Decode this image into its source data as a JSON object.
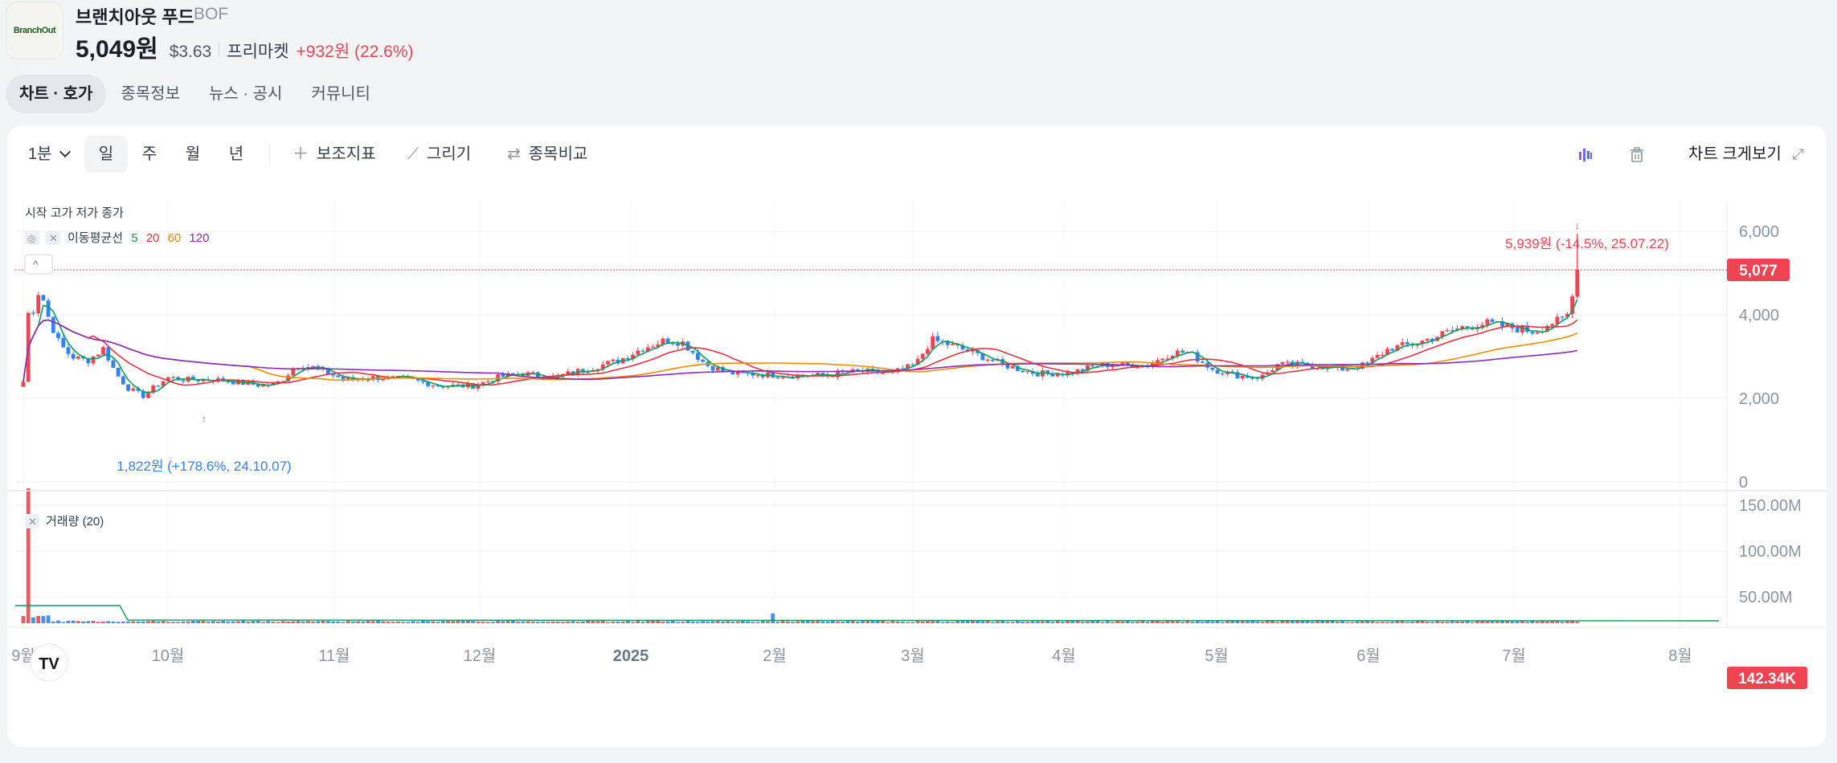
{
  "header": {
    "logo_text": "BranchOut",
    "name": "브랜치아웃 푸드",
    "code": "BOF",
    "price": "5,049원",
    "price_usd": "$3.63",
    "market": "프리마켓",
    "change": "+932원 (22.6%)"
  },
  "tabs": [
    {
      "label": "차트 · 호가",
      "active": true
    },
    {
      "label": "종목정보",
      "active": false
    },
    {
      "label": "뉴스 · 공시",
      "active": false
    },
    {
      "label": "커뮤니티",
      "active": false
    }
  ],
  "toolbar": {
    "interval": "1분",
    "periods": [
      {
        "label": "일",
        "active": true
      },
      {
        "label": "주",
        "active": false
      },
      {
        "label": "월",
        "active": false
      },
      {
        "label": "년",
        "active": false
      }
    ],
    "indicator_label": "보조지표",
    "draw_label": "그리기",
    "compare_label": "종목비교",
    "expand_label": "차트 크게보기"
  },
  "chart_data": {
    "type": "candlestick",
    "ohlc_label": "시작 고가 저가 종가",
    "ma_label": "이동평균선",
    "ma_periods": [
      {
        "label": "5",
        "color": "#0b9e5b"
      },
      {
        "label": "20",
        "color": "#e5343f"
      },
      {
        "label": "60",
        "color": "#f08c00"
      },
      {
        "label": "120",
        "color": "#8b2bc0"
      }
    ],
    "volume_label": "거래량 (20)",
    "y_ticks": [
      "6,000",
      "4,000",
      "2,000",
      "0"
    ],
    "ylim": [
      0,
      6800
    ],
    "volume_ticks": [
      "150.00M",
      "100.00M",
      "50.00M"
    ],
    "x_ticks": [
      {
        "label": "9월",
        "bold": false
      },
      {
        "label": "10월",
        "bold": false
      },
      {
        "label": "11월",
        "bold": false
      },
      {
        "label": "12월",
        "bold": false
      },
      {
        "label": "2025",
        "bold": true
      },
      {
        "label": "2월",
        "bold": false
      },
      {
        "label": "3월",
        "bold": false
      },
      {
        "label": "4월",
        "bold": false
      },
      {
        "label": "5월",
        "bold": false
      },
      {
        "label": "6월",
        "bold": false
      },
      {
        "label": "7월",
        "bold": false
      },
      {
        "label": "8월",
        "bold": false
      }
    ],
    "current_price_label": "5,077",
    "current_price": 5077,
    "current_volume_label": "142.34K",
    "high_annotation": "5,939원 (-14.5%, 25.07.22)",
    "low_annotation": "1,822원 (+178.6%, 24.10.07)",
    "up_color": "#f04452",
    "down_color": "#3182f6"
  }
}
